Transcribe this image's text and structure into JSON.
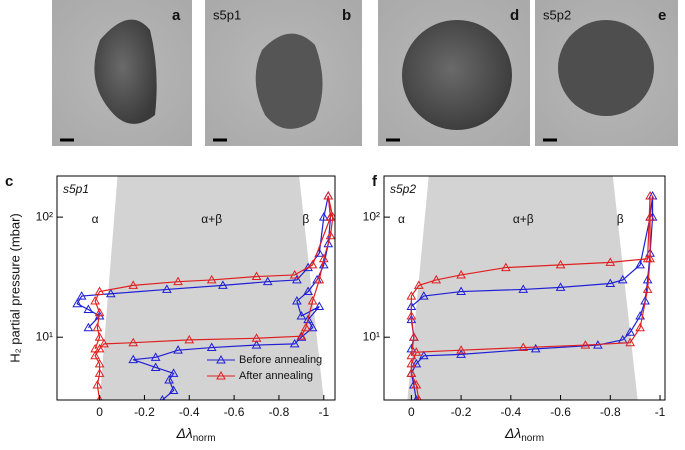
{
  "images": [
    {
      "letter": "a"
    },
    {
      "letter": "b",
      "sample": "s5p1"
    },
    {
      "letter": "d"
    },
    {
      "letter": "e",
      "sample": "s5p2"
    }
  ],
  "chart_data": [
    {
      "type": "line",
      "panel": "c",
      "sample": "s5p1",
      "ylabel": "H₂ partial pressure (mbar)",
      "xlabel": {
        "main": "Δλ",
        "sub": "norm"
      },
      "xlim": [
        0.19,
        -1.05
      ],
      "ylim": [
        3,
        220
      ],
      "yscale": "log",
      "xticks": [
        0,
        -0.2,
        -0.4,
        -0.6,
        -0.8,
        -1
      ],
      "yticks": [
        {
          "value": 10,
          "label": "10¹"
        },
        {
          "value": 100,
          "label": "10²"
        }
      ],
      "shaded_region": {
        "x": [
          -0.08,
          -0.89,
          -1.0,
          0.0
        ],
        "y": [
          220,
          220,
          3,
          3
        ]
      },
      "annotations": [
        {
          "text": "α",
          "x": 0.02,
          "y": 95
        },
        {
          "text": "α+β",
          "x": -0.5,
          "y": 95
        },
        {
          "text": "β",
          "x": -0.92,
          "y": 95
        }
      ],
      "legend": "lower right",
      "series": [
        {
          "name": "Before annealing",
          "color": "#1f1fd6",
          "x": [
            -0.28,
            -0.33,
            -0.31,
            -0.33,
            -0.25,
            -0.15,
            -0.25,
            -0.35,
            -0.5,
            -0.7,
            -0.87,
            -0.9,
            -0.95,
            -0.93,
            -0.98,
            -0.9,
            -0.88,
            -0.93,
            -0.97,
            -1.0,
            -1.02,
            -1.03,
            -1.02,
            -1.0,
            -0.98,
            -0.93,
            -0.88,
            -0.75,
            -0.55,
            -0.3,
            -0.05,
            0.08,
            0.1,
            0.05,
            0.0,
            0.05
          ],
          "values": [
            3.0,
            3.6,
            4.4,
            5.0,
            5.6,
            6.5,
            6.8,
            7.8,
            8.2,
            8.6,
            8.8,
            10,
            12,
            14,
            18,
            15,
            20,
            24,
            30,
            40,
            60,
            100,
            150,
            100,
            50,
            38,
            30,
            29,
            27,
            25,
            23,
            22,
            19,
            17,
            15,
            12
          ]
        },
        {
          "name": "After annealing",
          "color": "#e02020",
          "x": [
            0.0,
            0.01,
            0.0,
            0.0,
            0.02,
            0.0,
            -0.02,
            -0.15,
            -0.4,
            -0.7,
            -0.9,
            -0.92,
            -0.95,
            -0.98,
            -1.0,
            -1.03,
            -1.04,
            -1.02,
            -1.03,
            -0.95,
            -0.87,
            -0.7,
            -0.5,
            -0.35,
            -0.15,
            0.0,
            0.02,
            0.0,
            0.01,
            0.0,
            0.02
          ],
          "values": [
            3,
            4,
            5,
            6,
            7,
            8,
            8.8,
            9,
            9.5,
            9.8,
            10.2,
            12,
            20,
            30,
            45,
            70,
            100,
            150,
            100,
            40,
            33,
            32,
            30,
            29,
            27,
            24,
            20,
            16,
            12,
            10,
            8
          ]
        }
      ]
    },
    {
      "type": "line",
      "panel": "f",
      "sample": "s5p2",
      "ylabel": "",
      "xlabel": {
        "main": "Δλ",
        "sub": "norm"
      },
      "xlim": [
        0.11,
        -1.02
      ],
      "ylim": [
        3,
        220
      ],
      "yscale": "log",
      "xticks": [
        0,
        -0.2,
        -0.4,
        -0.6,
        -0.8,
        -1
      ],
      "yticks": [
        {
          "value": 10,
          "label": "10¹"
        },
        {
          "value": 100,
          "label": "10²"
        }
      ],
      "shaded_region": {
        "x": [
          -0.07,
          -0.81,
          -0.91,
          0.016
        ],
        "y": [
          220,
          220,
          3,
          3
        ]
      },
      "annotations": [
        {
          "text": "α",
          "x": 0.04,
          "y": 95
        },
        {
          "text": "α+β",
          "x": -0.45,
          "y": 95
        },
        {
          "text": "β",
          "x": -0.84,
          "y": 95
        }
      ],
      "series": [
        {
          "name": "Before annealing",
          "color": "#1f1fd6",
          "x": [
            -0.02,
            -0.01,
            0.0,
            -0.02,
            -0.05,
            -0.2,
            -0.5,
            -0.75,
            -0.85,
            -0.88,
            -0.92,
            -0.94,
            -0.95,
            -0.96,
            -0.97,
            -0.97,
            -0.96,
            -0.92,
            -0.85,
            -0.8,
            -0.6,
            -0.45,
            -0.2,
            -0.05,
            0.0,
            0.0,
            -0.01,
            0.0
          ],
          "values": [
            3,
            4,
            5,
            6,
            7,
            7.2,
            8,
            8.6,
            9.5,
            11,
            15,
            20,
            30,
            50,
            100,
            150,
            100,
            40,
            30,
            28,
            26,
            25,
            24,
            22,
            18,
            14,
            10,
            8
          ]
        },
        {
          "name": "After annealing",
          "color": "#e02020",
          "x": [
            -0.03,
            -0.02,
            0.0,
            0.0,
            -0.02,
            -0.2,
            -0.45,
            -0.7,
            -0.88,
            -0.92,
            -0.95,
            -0.96,
            -0.96,
            -0.96,
            -0.95,
            -0.8,
            -0.6,
            -0.38,
            -0.2,
            -0.1,
            -0.03,
            0.0,
            0.0,
            -0.01,
            0.0
          ],
          "values": [
            3,
            4,
            5,
            6,
            7.5,
            7.8,
            8.2,
            8.6,
            9,
            12,
            25,
            45,
            100,
            150,
            45,
            42,
            40,
            38,
            33,
            30,
            27,
            22,
            15,
            10,
            7
          ]
        }
      ]
    }
  ]
}
